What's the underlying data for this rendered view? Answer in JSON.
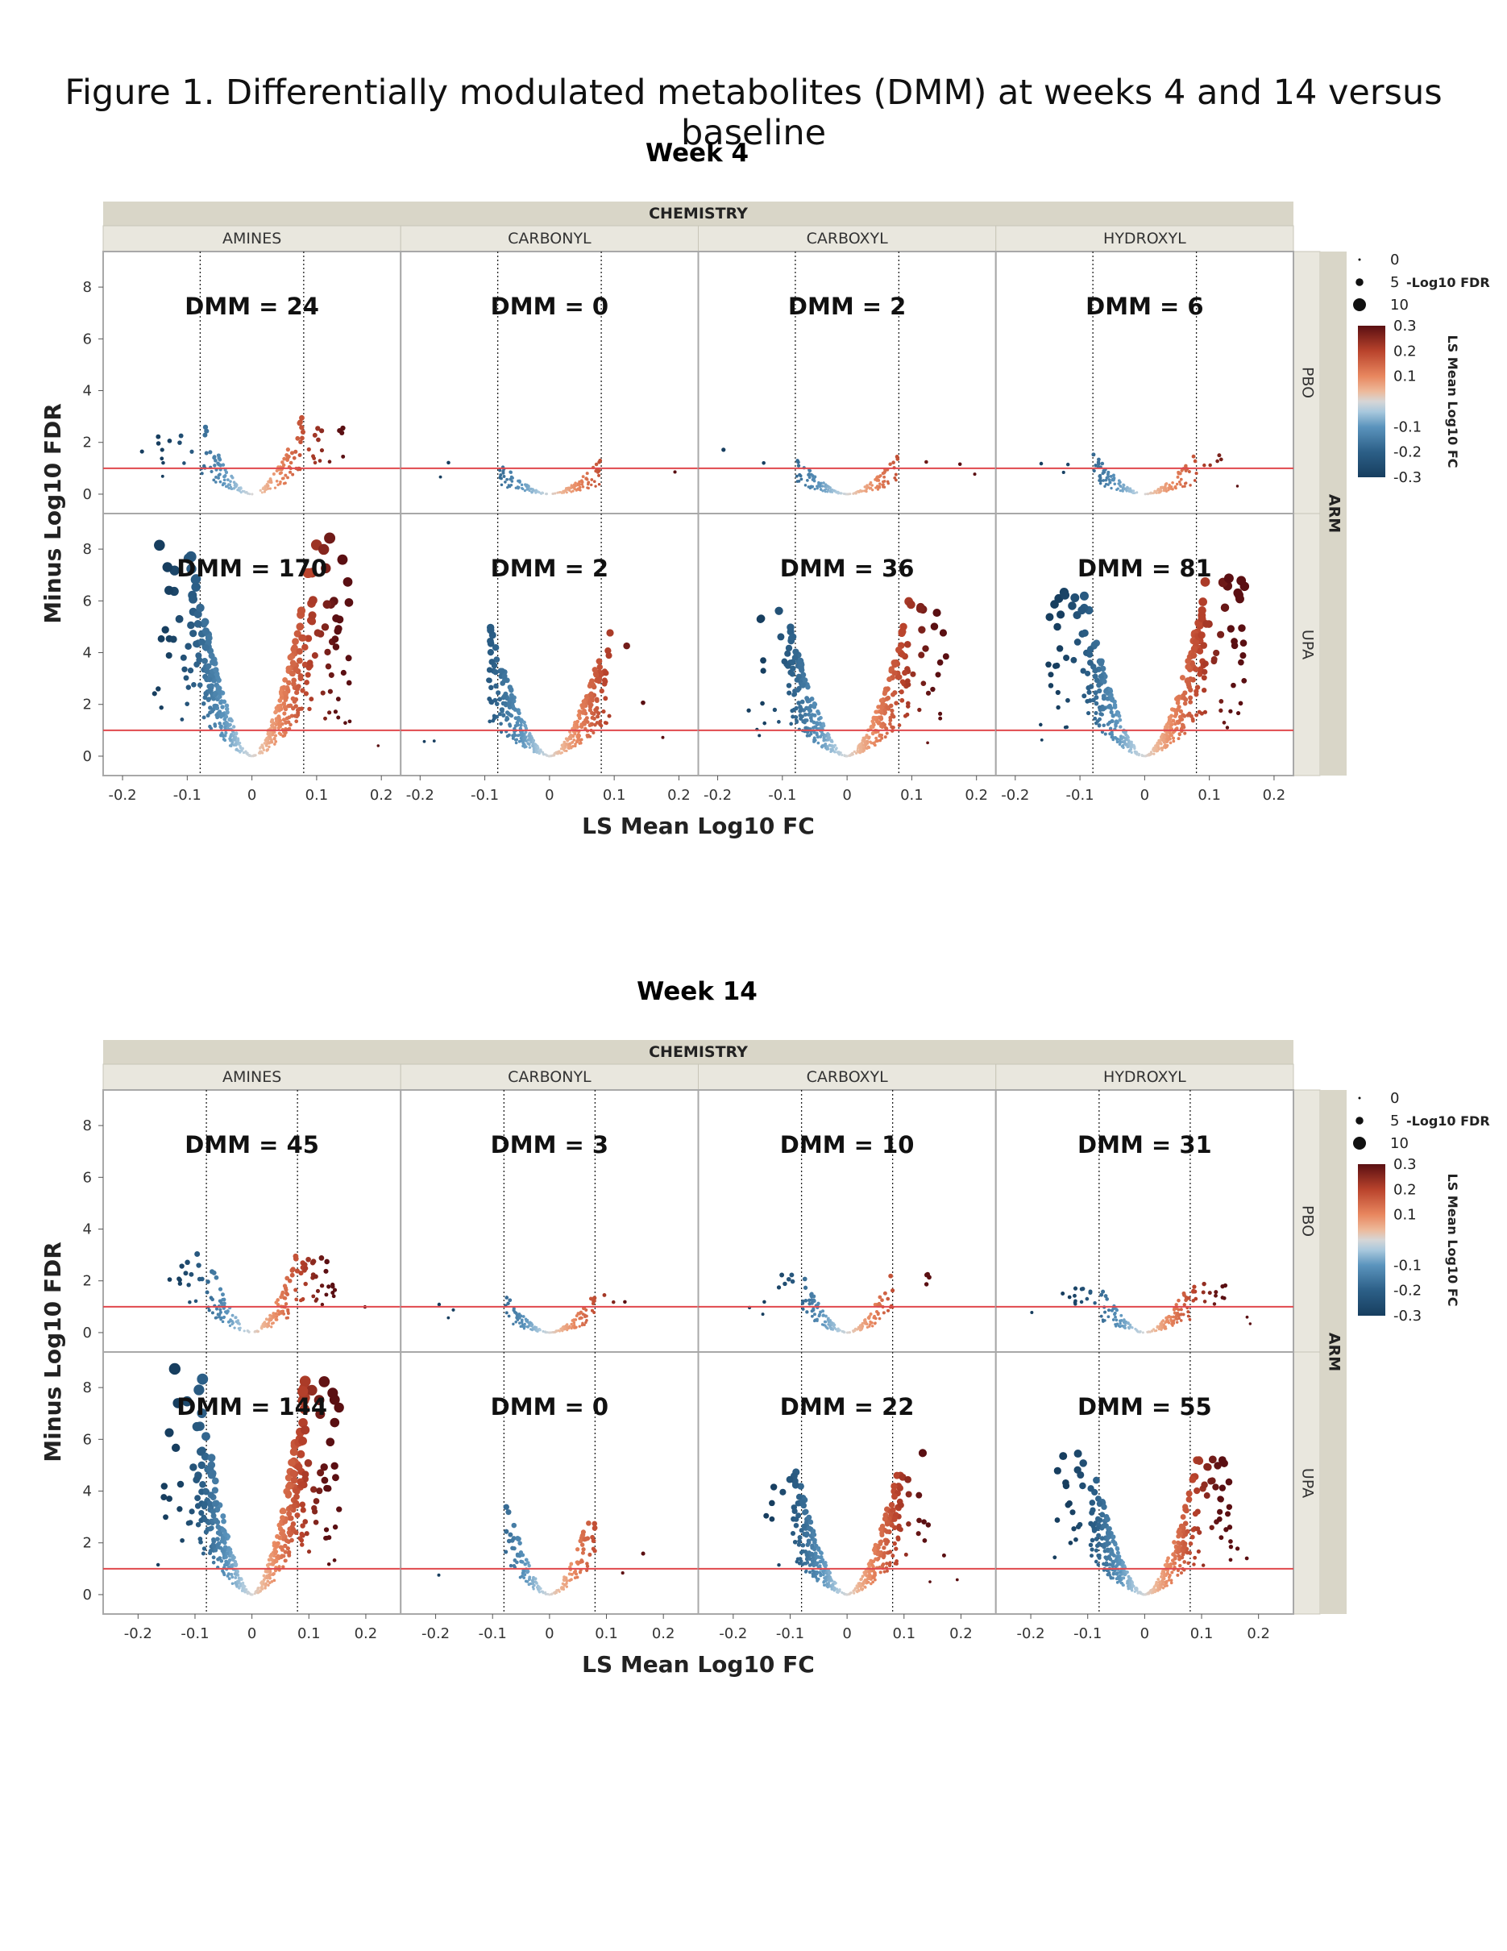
{
  "figure_title": "Figure 1. Differentially modulated metabolites (DMM) at weeks 4 and 14 versus baseline",
  "colors": {
    "threshold_line": "#e0484d",
    "strip_bg": "#e9e7de",
    "strip_dark": "#d9d6c8",
    "scale_low": "#173e5f",
    "scale_mid": "#d9d9d9",
    "scale_high": "#5a0f12"
  },
  "chart_data": [
    {
      "type": "scatter",
      "subtype": "faceted volcano plot",
      "title": "Week 4",
      "column_strip_title": "CHEMISTRY",
      "row_strip_title": "ARM",
      "columns": [
        "AMINES",
        "CARBONYL",
        "CARBOXYL",
        "HYDROXYL"
      ],
      "rows": [
        "PBO",
        "UPA"
      ],
      "xlabel": "LS Mean Log10 FC",
      "ylabel": "Minus Log10 FDR",
      "xlim": [
        -0.22,
        0.22
      ],
      "ylim": [
        -0.5,
        9
      ],
      "x_ticks": [
        "-0.2",
        "-0.1",
        "0",
        "0.1",
        "0.2"
      ],
      "y_ticks": [
        "0",
        "2",
        "4",
        "6",
        "8"
      ],
      "fc_threshold_lines": [
        -0.08,
        0.08
      ],
      "fdr_threshold_line": 1.0,
      "grid": false,
      "panels": [
        {
          "row": "PBO",
          "column": "AMINES",
          "dmm_label": "DMM = 24",
          "dmm": 24,
          "max_y": 3.0
        },
        {
          "row": "PBO",
          "column": "CARBONYL",
          "dmm_label": "DMM = 0",
          "dmm": 0,
          "max_y": 1.3
        },
        {
          "row": "PBO",
          "column": "CARBOXYL",
          "dmm_label": "DMM = 2",
          "dmm": 2,
          "max_y": 1.5
        },
        {
          "row": "PBO",
          "column": "HYDROXYL",
          "dmm_label": "DMM = 6",
          "dmm": 6,
          "max_y": 1.6
        },
        {
          "row": "UPA",
          "column": "AMINES",
          "dmm_label": "DMM = 170",
          "dmm": 170,
          "max_y": 8.5
        },
        {
          "row": "UPA",
          "column": "CARBONYL",
          "dmm_label": "DMM = 2",
          "dmm": 2,
          "max_y": 5.7
        },
        {
          "row": "UPA",
          "column": "CARBOXYL",
          "dmm_label": "DMM = 36",
          "dmm": 36,
          "max_y": 6.0
        },
        {
          "row": "UPA",
          "column": "HYDROXYL",
          "dmm_label": "DMM = 81",
          "dmm": 81,
          "max_y": 6.9
        }
      ]
    },
    {
      "type": "scatter",
      "subtype": "faceted volcano plot",
      "title": "Week 14",
      "column_strip_title": "CHEMISTRY",
      "row_strip_title": "ARM",
      "columns": [
        "AMINES",
        "CARBONYL",
        "CARBOXYL",
        "HYDROXYL"
      ],
      "rows": [
        "PBO",
        "UPA"
      ],
      "xlabel": "LS Mean Log10 FC",
      "ylabel": "Minus Log10 FDR",
      "xlim": [
        -0.25,
        0.25
      ],
      "ylim": [
        -0.5,
        9
      ],
      "x_ticks": [
        "-0.2",
        "-0.1",
        "0",
        "0.1",
        "0.2"
      ],
      "y_ticks": [
        "0",
        "2",
        "4",
        "6",
        "8"
      ],
      "fc_threshold_lines": [
        -0.08,
        0.08
      ],
      "fdr_threshold_line": 1.0,
      "grid": false,
      "panels": [
        {
          "row": "PBO",
          "column": "AMINES",
          "dmm_label": "DMM = 45",
          "dmm": 45,
          "max_y": 3.1
        },
        {
          "row": "PBO",
          "column": "CARBONYL",
          "dmm_label": "DMM = 3",
          "dmm": 3,
          "max_y": 1.5
        },
        {
          "row": "PBO",
          "column": "CARBOXYL",
          "dmm_label": "DMM = 10",
          "dmm": 10,
          "max_y": 2.3
        },
        {
          "row": "PBO",
          "column": "HYDROXYL",
          "dmm_label": "DMM = 31",
          "dmm": 31,
          "max_y": 1.9
        },
        {
          "row": "UPA",
          "column": "AMINES",
          "dmm_label": "DMM = 144",
          "dmm": 144,
          "max_y": 8.8
        },
        {
          "row": "UPA",
          "column": "CARBONYL",
          "dmm_label": "DMM = 0",
          "dmm": 0,
          "max_y": 4.0
        },
        {
          "row": "UPA",
          "column": "CARBOXYL",
          "dmm_label": "DMM = 22",
          "dmm": 22,
          "max_y": 5.6
        },
        {
          "row": "UPA",
          "column": "HYDROXYL",
          "dmm_label": "DMM = 55",
          "dmm": 55,
          "max_y": 5.6
        }
      ]
    }
  ],
  "legend": {
    "size_title": "-Log10 FDR",
    "size_values": [
      "0",
      "5",
      "10"
    ],
    "color_title": "LS Mean Log10 FC",
    "color_ticks": [
      "0.3",
      "0.2",
      "0.1",
      "-0.1",
      "-0.2",
      "-0.3"
    ]
  }
}
